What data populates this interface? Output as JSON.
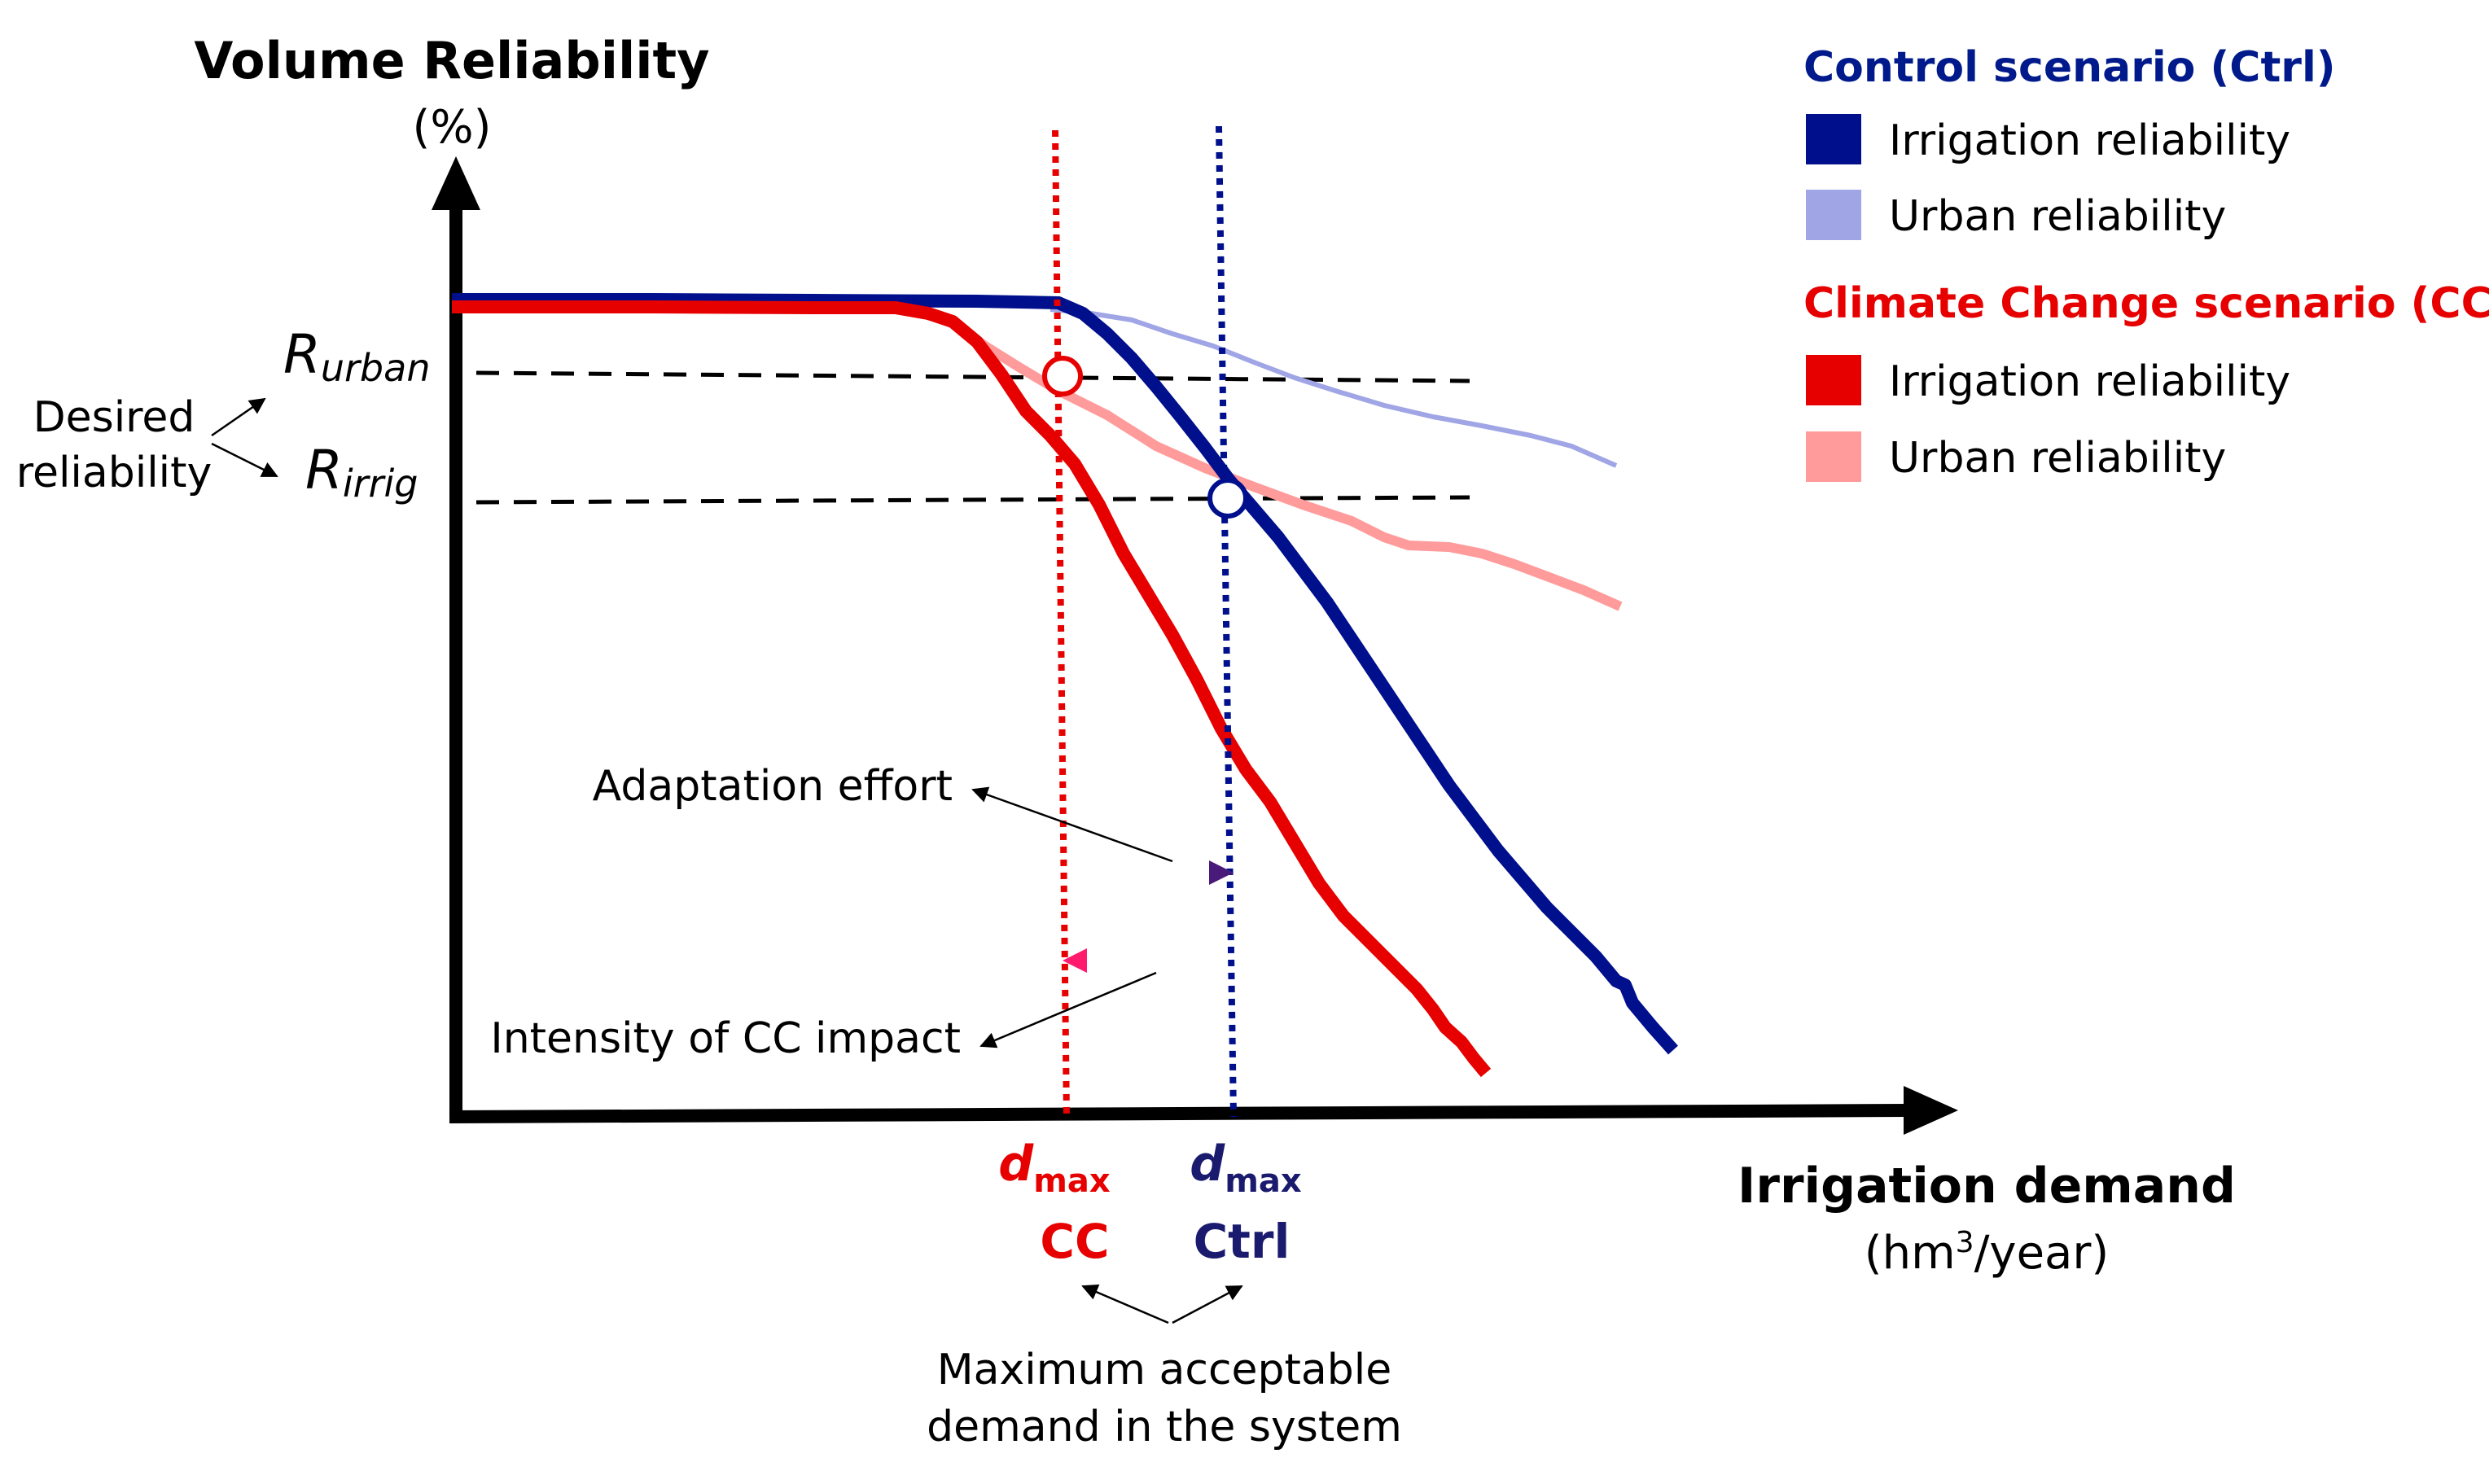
{
  "labels": {
    "y_title": "Volume Reliability",
    "y_unit": "(%)",
    "x_title": "Irrigation demand",
    "x_unit_prefix": "(hm",
    "x_unit_sup": "3",
    "x_unit_suffix": "/year)",
    "r_urban_main": "R",
    "r_urban_sub": "urban",
    "r_irrig_main": "R",
    "r_irrig_sub": "irrig",
    "desired_line1": "Desired",
    "desired_line2": "reliability",
    "adaptation": "Adaptation effort",
    "intensity": "Intensity of CC impact",
    "dmax_cc_main": "d",
    "dmax_cc_sub": "max",
    "dmax_cc_label": "CC",
    "dmax_ctrl_main": "d",
    "dmax_ctrl_sub": "max",
    "dmax_ctrl_label": "Ctrl",
    "max_demand_line1": "Maximum acceptable",
    "max_demand_line2": "demand in the system"
  },
  "legend": {
    "ctrl_title": "Control scenario (Ctrl)",
    "ctrl_irrig": "Irrigation reliability",
    "ctrl_urban": "Urban reliability",
    "cc_title": "Climate Change scenario (CC)",
    "cc_irrig": "Irrigation reliability",
    "cc_urban": "Urban reliability"
  },
  "colors": {
    "ctrl_irrig": "#000f8c",
    "ctrl_urban": "#a0a5e6",
    "cc_irrig": "#e60000",
    "cc_urban": "#ff9b9b",
    "ctrl_text": "#001a8c",
    "cc_text": "#e60000",
    "ctrl_dark_text": "#1a1a6e",
    "axis": "#000000"
  }
}
